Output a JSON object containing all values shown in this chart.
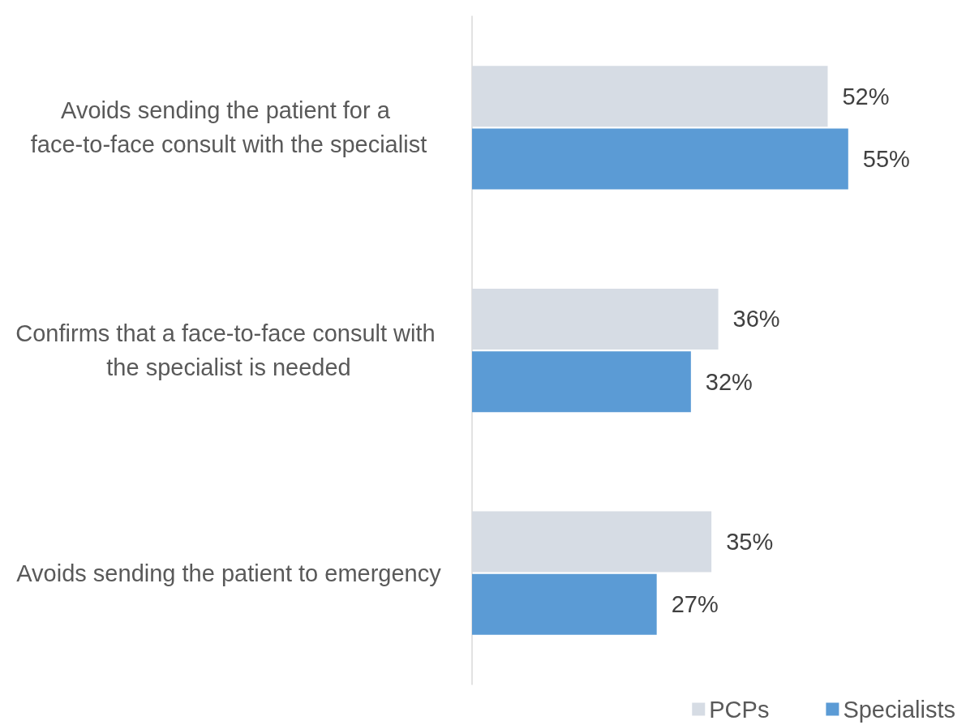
{
  "chart_data": {
    "type": "bar",
    "orientation": "horizontal",
    "categories": [
      "Avoids sending the patient for a face-to-face consult with the specialist",
      "Confirms that a face-to-face consult with the specialist is needed",
      "Avoids sending the patient to emergency"
    ],
    "series": [
      {
        "name": "PCPs",
        "color": "#d6dce4",
        "values": [
          52,
          36,
          35
        ],
        "value_labels": [
          "52%",
          "36%",
          "35%"
        ]
      },
      {
        "name": "Specialists",
        "color": "#5b9bd5",
        "values": [
          55,
          32,
          27
        ],
        "value_labels": [
          "55%",
          "32%",
          "27%"
        ]
      }
    ],
    "grid": false,
    "legend": "bottom right",
    "tick_labels": "y"
  }
}
